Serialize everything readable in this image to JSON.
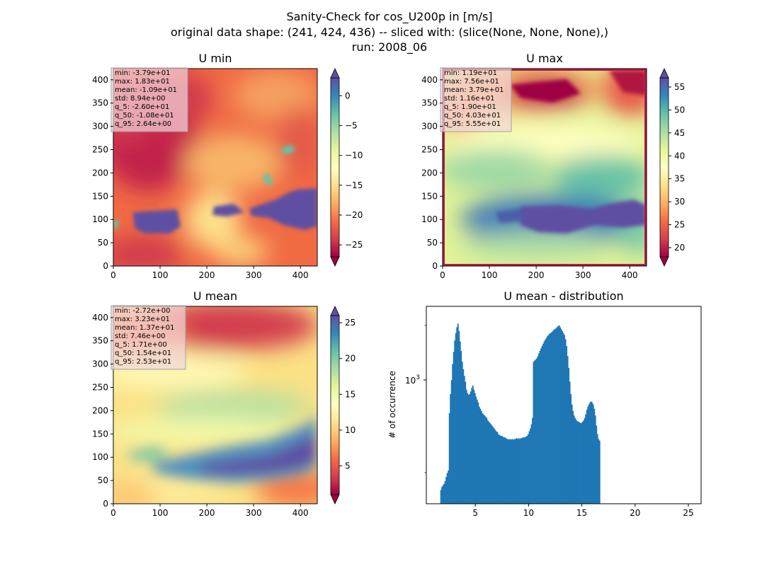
{
  "suptitle": {
    "line1": "Sanity-Check for cos_U200p in [m/s]",
    "line2": "original data shape: (241, 424, 436) -- sliced with: (slice(None, None, None),)",
    "line3": "run: 2008_06"
  },
  "colormap": "Spectral",
  "chart_data": [
    {
      "type": "heatmap",
      "title": "U min",
      "xlim": [
        0,
        436
      ],
      "ylim": [
        0,
        424
      ],
      "x_ticks": [
        "0",
        "100",
        "200",
        "300",
        "400"
      ],
      "y_ticks": [
        "0",
        "50",
        "100",
        "150",
        "200",
        "250",
        "300",
        "350",
        "400"
      ],
      "colorbar": {
        "range": [
          -27,
          3
        ],
        "ticks": [
          "0",
          "−5",
          "−10",
          "−15",
          "−20",
          "−25"
        ],
        "tick_values": [
          0,
          -5,
          -10,
          -15,
          -20,
          -25
        ],
        "extend": "both"
      },
      "stats": [
        "min: -3.79e+01",
        "max: 1.83e+01",
        "mean: -1.09e+01",
        "std: 8.94e+00",
        "q_5: -2.60e+01",
        "q_50: -1.08e+01",
        "q_95: 2.64e+00"
      ]
    },
    {
      "type": "heatmap",
      "title": "U max",
      "xlim": [
        0,
        436
      ],
      "ylim": [
        0,
        424
      ],
      "x_ticks": [
        "0",
        "100",
        "200",
        "300",
        "400"
      ],
      "y_ticks": [
        "0",
        "50",
        "100",
        "150",
        "200",
        "250",
        "300",
        "350",
        "400"
      ],
      "colorbar": {
        "range": [
          18,
          57
        ],
        "ticks": [
          "55",
          "50",
          "45",
          "40",
          "35",
          "30",
          "25",
          "20"
        ],
        "tick_values": [
          55,
          50,
          45,
          40,
          35,
          30,
          25,
          20
        ],
        "extend": "both"
      },
      "stats": [
        "min: 1.19e+01",
        "max: 7.56e+01",
        "mean: 3.79e+01",
        "std: 1.16e+01",
        "q_5: 1.90e+01",
        "q_50: 4.03e+01",
        "q_95: 5.55e+01"
      ]
    },
    {
      "type": "heatmap",
      "title": "U mean",
      "xlim": [
        0,
        436
      ],
      "ylim": [
        0,
        424
      ],
      "x_ticks": [
        "0",
        "100",
        "200",
        "300",
        "400"
      ],
      "y_ticks": [
        "0",
        "50",
        "100",
        "150",
        "200",
        "250",
        "300",
        "350",
        "400"
      ],
      "colorbar": {
        "range": [
          1,
          26
        ],
        "ticks": [
          "25",
          "20",
          "15",
          "10",
          "5"
        ],
        "tick_values": [
          25,
          20,
          15,
          10,
          5
        ],
        "extend": "both"
      },
      "stats": [
        "min: -2.72e+00",
        "max: 3.23e+01",
        "mean: 1.37e+01",
        "std: 7.46e+00",
        "q_5: 1.71e+00",
        "q_50: 1.54e+01",
        "q_95: 2.53e+01"
      ]
    },
    {
      "type": "bar",
      "title": "U mean - distribution",
      "ylabel": "# of occurrence",
      "yscale": "log",
      "y_tick_label": "10",
      "y_tick_exp": "3",
      "xlim": [
        0.4,
        26.2
      ],
      "x_ticks": [
        "5",
        "10",
        "15",
        "20",
        "25"
      ],
      "x_tick_values": [
        5,
        10,
        15,
        20,
        25
      ],
      "color": "#1f77b4",
      "bin_start": 1.71,
      "bin_width": 0.1,
      "counts": [
        240,
        250,
        255,
        260,
        270,
        285,
        300,
        310,
        660,
        850,
        1020,
        1260,
        1480,
        1720,
        1900,
        2050,
        2150,
        1950,
        1700,
        1500,
        1300,
        1180,
        1080,
        1000,
        900,
        860,
        840,
        850,
        880,
        920,
        950,
        900,
        860,
        820,
        790,
        760,
        720,
        700,
        680,
        660,
        650,
        640,
        630,
        620,
        600,
        590,
        580,
        570,
        560,
        550,
        540,
        530,
        520,
        515,
        500,
        495,
        490,
        490,
        485,
        480,
        480,
        475,
        470,
        470,
        465,
        470,
        465,
        470,
        465,
        470,
        470,
        475,
        470,
        475,
        470,
        475,
        475,
        480,
        480,
        480,
        485,
        490,
        500,
        520,
        540,
        570,
        620,
        1300,
        1320,
        1340,
        1360,
        1400,
        1450,
        1500,
        1550,
        1600,
        1650,
        1700,
        1740,
        1780,
        1820,
        1850,
        1880,
        1900,
        1920,
        1950,
        1980,
        2000,
        2020,
        2050,
        2080,
        2100,
        2050,
        2000,
        1950,
        1900,
        1850,
        1750,
        1600,
        1400,
        1200,
        1000,
        850,
        740,
        680,
        640,
        620,
        605,
        595,
        590,
        585,
        580,
        580,
        590,
        600,
        620,
        650,
        690,
        720,
        740,
        760,
        770,
        760,
        740,
        700,
        640,
        560,
        500,
        470,
        460
      ]
    }
  ]
}
